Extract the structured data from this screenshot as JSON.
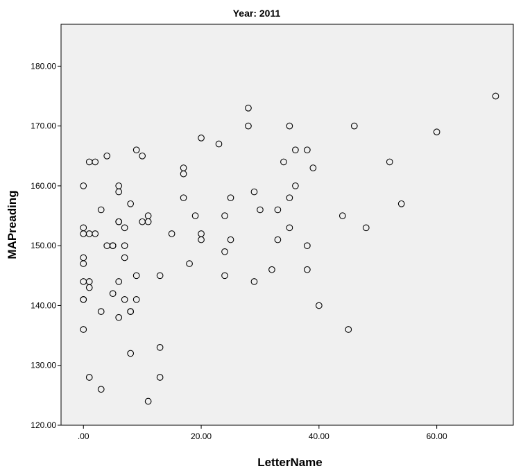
{
  "chart_data": {
    "type": "scatter",
    "title": "Year: 2011",
    "xlabel": "LetterName",
    "ylabel": "MAPreading",
    "xlim": [
      -3.8,
      73
    ],
    "ylim": [
      120,
      187
    ],
    "xticks": [
      0,
      20,
      40,
      60
    ],
    "xtick_labels": [
      ".00",
      "20.00",
      "40.00",
      "60.00"
    ],
    "yticks": [
      120,
      130,
      140,
      150,
      160,
      170,
      180
    ],
    "ytick_labels": [
      "120.00",
      "130.00",
      "140.00",
      "150.00",
      "160.00",
      "170.00",
      "180.00"
    ],
    "grid": false,
    "legend": "none",
    "colors": {
      "plot_background": "#f0f0f0",
      "marker_edge": "#000000",
      "axis": "#000000"
    },
    "points": [
      {
        "x": 0,
        "y": 160
      },
      {
        "x": 0,
        "y": 153
      },
      {
        "x": 0,
        "y": 152
      },
      {
        "x": 0,
        "y": 148
      },
      {
        "x": 0,
        "y": 147
      },
      {
        "x": 0,
        "y": 144
      },
      {
        "x": 0,
        "y": 141
      },
      {
        "x": 0,
        "y": 141
      },
      {
        "x": 0,
        "y": 136
      },
      {
        "x": 1,
        "y": 164
      },
      {
        "x": 1,
        "y": 152
      },
      {
        "x": 1,
        "y": 144
      },
      {
        "x": 1,
        "y": 143
      },
      {
        "x": 1,
        "y": 128
      },
      {
        "x": 2,
        "y": 164
      },
      {
        "x": 2,
        "y": 152
      },
      {
        "x": 3,
        "y": 156
      },
      {
        "x": 3,
        "y": 139
      },
      {
        "x": 3,
        "y": 126
      },
      {
        "x": 4,
        "y": 165
      },
      {
        "x": 4,
        "y": 150
      },
      {
        "x": 5,
        "y": 150
      },
      {
        "x": 5,
        "y": 150
      },
      {
        "x": 5,
        "y": 142
      },
      {
        "x": 6,
        "y": 160
      },
      {
        "x": 6,
        "y": 159
      },
      {
        "x": 6,
        "y": 154
      },
      {
        "x": 6,
        "y": 154
      },
      {
        "x": 6,
        "y": 144
      },
      {
        "x": 6,
        "y": 138
      },
      {
        "x": 7,
        "y": 153
      },
      {
        "x": 7,
        "y": 150
      },
      {
        "x": 7,
        "y": 148
      },
      {
        "x": 7,
        "y": 141
      },
      {
        "x": 8,
        "y": 157
      },
      {
        "x": 8,
        "y": 139
      },
      {
        "x": 8,
        "y": 139
      },
      {
        "x": 8,
        "y": 132
      },
      {
        "x": 9,
        "y": 166
      },
      {
        "x": 9,
        "y": 145
      },
      {
        "x": 9,
        "y": 141
      },
      {
        "x": 10,
        "y": 165
      },
      {
        "x": 10,
        "y": 154
      },
      {
        "x": 11,
        "y": 155
      },
      {
        "x": 11,
        "y": 154
      },
      {
        "x": 11,
        "y": 124
      },
      {
        "x": 13,
        "y": 145
      },
      {
        "x": 13,
        "y": 133
      },
      {
        "x": 13,
        "y": 128
      },
      {
        "x": 15,
        "y": 152
      },
      {
        "x": 17,
        "y": 163
      },
      {
        "x": 17,
        "y": 162
      },
      {
        "x": 17,
        "y": 158
      },
      {
        "x": 18,
        "y": 147
      },
      {
        "x": 19,
        "y": 155
      },
      {
        "x": 20,
        "y": 168
      },
      {
        "x": 20,
        "y": 152
      },
      {
        "x": 20,
        "y": 151
      },
      {
        "x": 23,
        "y": 167
      },
      {
        "x": 24,
        "y": 155
      },
      {
        "x": 24,
        "y": 149
      },
      {
        "x": 24,
        "y": 145
      },
      {
        "x": 25,
        "y": 158
      },
      {
        "x": 25,
        "y": 151
      },
      {
        "x": 28,
        "y": 173
      },
      {
        "x": 28,
        "y": 170
      },
      {
        "x": 29,
        "y": 159
      },
      {
        "x": 29,
        "y": 144
      },
      {
        "x": 30,
        "y": 156
      },
      {
        "x": 32,
        "y": 146
      },
      {
        "x": 33,
        "y": 156
      },
      {
        "x": 33,
        "y": 151
      },
      {
        "x": 34,
        "y": 164
      },
      {
        "x": 35,
        "y": 170
      },
      {
        "x": 35,
        "y": 158
      },
      {
        "x": 35,
        "y": 153
      },
      {
        "x": 36,
        "y": 166
      },
      {
        "x": 36,
        "y": 160
      },
      {
        "x": 38,
        "y": 166
      },
      {
        "x": 38,
        "y": 150
      },
      {
        "x": 38,
        "y": 146
      },
      {
        "x": 39,
        "y": 163
      },
      {
        "x": 40,
        "y": 140
      },
      {
        "x": 44,
        "y": 155
      },
      {
        "x": 45,
        "y": 136
      },
      {
        "x": 46,
        "y": 170
      },
      {
        "x": 48,
        "y": 153
      },
      {
        "x": 52,
        "y": 164
      },
      {
        "x": 54,
        "y": 157
      },
      {
        "x": 60,
        "y": 169
      },
      {
        "x": 70,
        "y": 175
      }
    ]
  }
}
